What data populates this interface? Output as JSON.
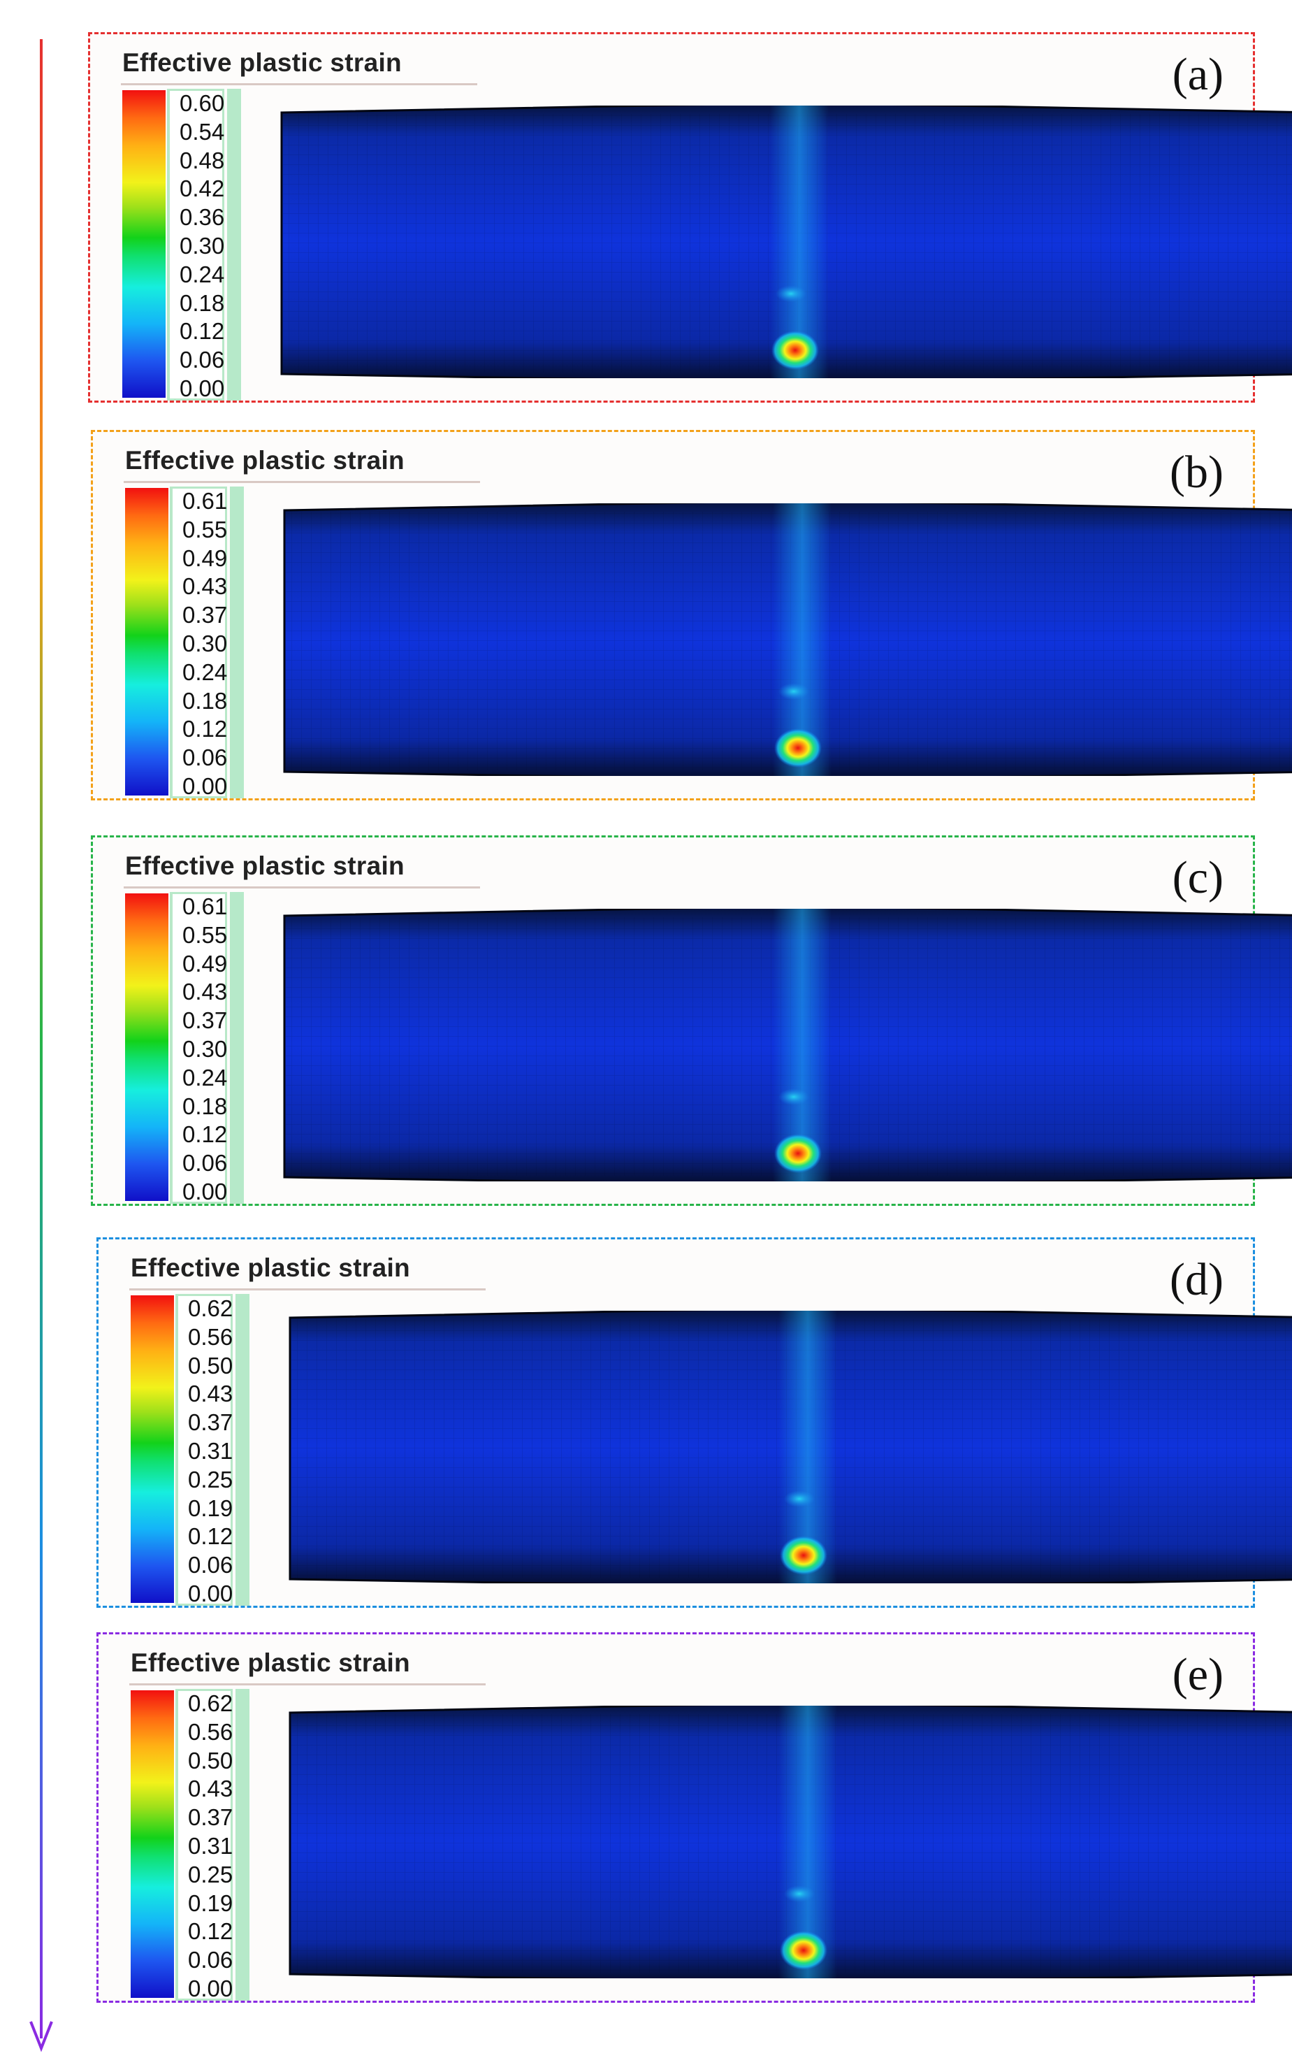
{
  "figure": {
    "progression_arrow_colors": [
      "#e53030",
      "#f3a11a",
      "#28b44a",
      "#1c8fe0",
      "#8a2be2"
    ],
    "colormap": [
      "#1010c8",
      "#1e56f0",
      "#14b4f8",
      "#16eede",
      "#12d21a",
      "#f2f21a",
      "#ffb014",
      "#f21010"
    ],
    "model_base_color": "#0e2fd8",
    "panels": [
      {
        "label": "(a)",
        "title": "Effective plastic strain",
        "border_color": "#e53030",
        "scale_values": [
          "0.60",
          "0.54",
          "0.48",
          "0.42",
          "0.36",
          "0.30",
          "0.24",
          "0.18",
          "0.12",
          "0.06",
          "0.00"
        ]
      },
      {
        "label": "(b)",
        "title": "Effective plastic strain",
        "border_color": "#f3a11a",
        "scale_values": [
          "0.61",
          "0.55",
          "0.49",
          "0.43",
          "0.37",
          "0.30",
          "0.24",
          "0.18",
          "0.12",
          "0.06",
          "0.00"
        ]
      },
      {
        "label": "(c)",
        "title": "Effective plastic strain",
        "border_color": "#28b44a",
        "scale_values": [
          "0.61",
          "0.55",
          "0.49",
          "0.43",
          "0.37",
          "0.30",
          "0.24",
          "0.18",
          "0.12",
          "0.06",
          "0.00"
        ]
      },
      {
        "label": "(d)",
        "title": "Effective plastic strain",
        "border_color": "#1c8fe0",
        "scale_values": [
          "0.62",
          "0.56",
          "0.50",
          "0.43",
          "0.37",
          "0.31",
          "0.25",
          "0.19",
          "0.12",
          "0.06",
          "0.00"
        ]
      },
      {
        "label": "(e)",
        "title": "Effective plastic strain",
        "border_color": "#8a2be2",
        "scale_values": [
          "0.62",
          "0.56",
          "0.50",
          "0.43",
          "0.37",
          "0.31",
          "0.25",
          "0.19",
          "0.12",
          "0.06",
          "0.00"
        ]
      }
    ]
  }
}
